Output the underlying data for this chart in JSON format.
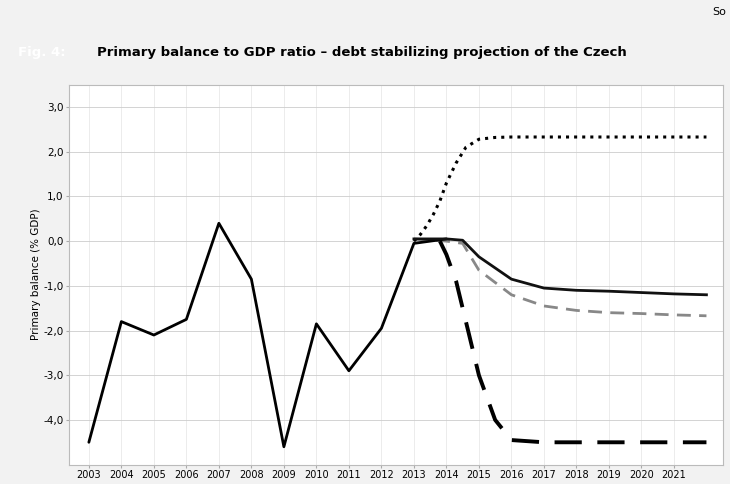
{
  "ylabel": "Primary balance (% GDP)",
  "background_color": "#f2f2f2",
  "plot_bg_color": "#ffffff",
  "ylim": [
    -5.0,
    3.5
  ],
  "yticks": [
    -4.0,
    -3.0,
    -2.0,
    -1.0,
    0.0,
    1.0,
    2.0,
    3.0
  ],
  "ytick_labels": [
    "-4,0",
    "-3,0",
    "-2,0",
    "-1,0",
    "0,0",
    "1,0",
    "2,0",
    "3,0"
  ],
  "xlim_start": 2002.4,
  "xlim_end": 2022.5,
  "xticks": [
    2003,
    2004,
    2005,
    2006,
    2007,
    2008,
    2009,
    2010,
    2011,
    2012,
    2013,
    2014,
    2015,
    2016,
    2017,
    2018,
    2019,
    2020,
    2021
  ],
  "historical_x": [
    2003,
    2004,
    2005,
    2006,
    2007,
    2008,
    2009,
    2010,
    2011,
    2012,
    2013,
    2014
  ],
  "historical_y": [
    -4.5,
    -1.8,
    -2.1,
    -1.75,
    0.4,
    -0.85,
    -4.6,
    -1.85,
    -2.9,
    -1.95,
    -0.05,
    0.05
  ],
  "dotted_x": [
    2013,
    2013.2,
    2013.4,
    2013.6,
    2013.8,
    2014.0,
    2014.3,
    2014.6,
    2015.0,
    2015.5,
    2016,
    2017,
    2018,
    2019,
    2020,
    2021,
    2022
  ],
  "dotted_y": [
    0.0,
    0.15,
    0.35,
    0.6,
    0.9,
    1.3,
    1.75,
    2.1,
    2.28,
    2.32,
    2.33,
    2.33,
    2.33,
    2.33,
    2.33,
    2.33,
    2.33
  ],
  "dashed_x": [
    2013.8,
    2014.0,
    2014.3,
    2014.6,
    2015.0,
    2015.5,
    2016.0,
    2017,
    2018,
    2019,
    2020,
    2021,
    2022
  ],
  "dashed_y": [
    0.0,
    -0.3,
    -0.9,
    -1.8,
    -3.0,
    -4.0,
    -4.45,
    -4.5,
    -4.5,
    -4.5,
    -4.5,
    -4.5,
    -4.5
  ],
  "solid_proj_x": [
    2013,
    2014,
    2014.5,
    2015,
    2016,
    2017,
    2018,
    2019,
    2020,
    2021,
    2022
  ],
  "solid_proj_y": [
    0.05,
    0.05,
    0.02,
    -0.35,
    -0.85,
    -1.05,
    -1.1,
    -1.12,
    -1.15,
    -1.18,
    -1.2
  ],
  "gray_dashed_x": [
    2013,
    2014,
    2014.5,
    2015,
    2016,
    2017,
    2018,
    2019,
    2020,
    2021,
    2022
  ],
  "gray_dashed_y": [
    0.05,
    0.0,
    -0.05,
    -0.65,
    -1.2,
    -1.45,
    -1.55,
    -1.6,
    -1.62,
    -1.65,
    -1.67
  ],
  "source_text": "So",
  "fig_label": "Fig. 4:",
  "fig_title": "Primary balance to GDP ratio – debt stabilizing projection of the Czech",
  "header_gray_color": "#6b6b6b",
  "header_text_color": "#000000",
  "divider_color": "#cccccc"
}
